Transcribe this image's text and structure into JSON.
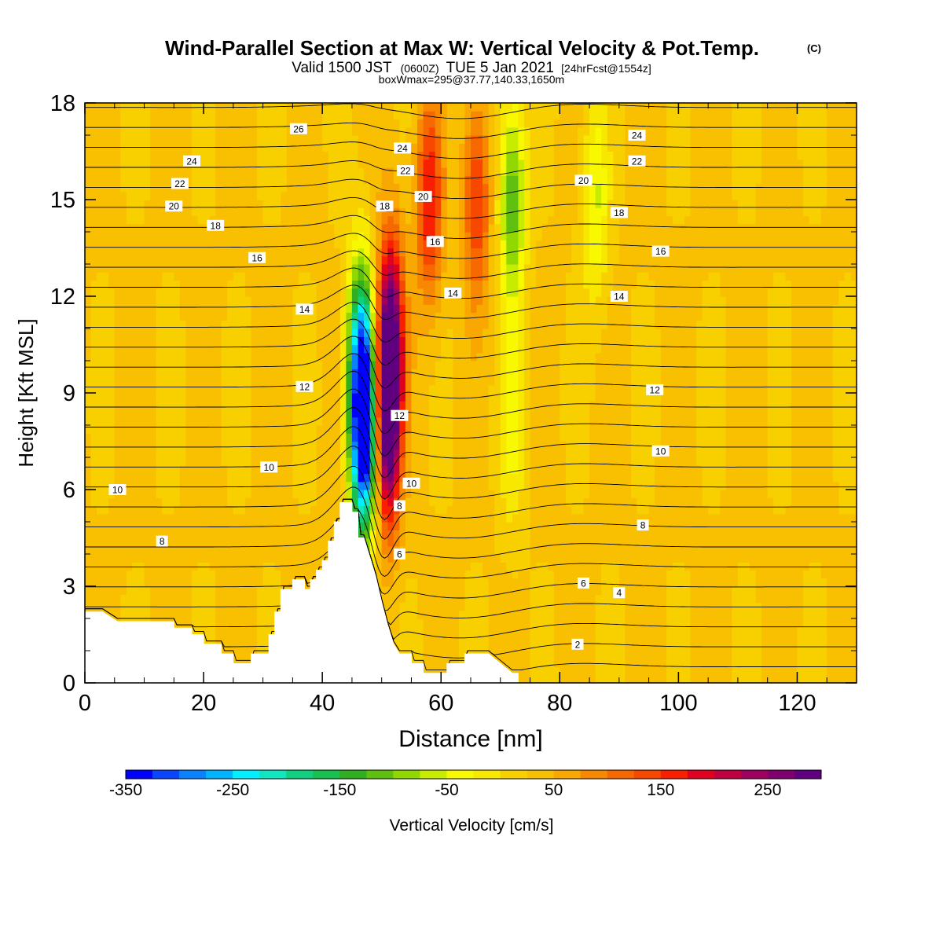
{
  "chart_data": {
    "type": "heatmap",
    "title": "Wind-Parallel Section at Max W: Vertical Velocity & Pot.Temp.",
    "title_mark": "(C)",
    "subtitle": {
      "main": "Valid 1500 JST",
      "utc": "(0600Z)",
      "date": "TUE 5 Jan 2021",
      "fcst": "[24hrFcst@1554z]"
    },
    "subsubtitle": "boxWmax=295@37.77,140.33,1650m",
    "xlabel": "Distance [nm]",
    "ylabel": "Height [Kft MSL]",
    "xlim": [
      0,
      130
    ],
    "ylim": [
      0,
      18
    ],
    "xticks": [
      0,
      20,
      40,
      60,
      80,
      100,
      120
    ],
    "yticks": [
      0,
      3,
      6,
      9,
      12,
      15,
      18
    ],
    "colorbar": {
      "label": "Vertical Velocity [cm/s]",
      "tick_labels": [
        -350,
        -250,
        -150,
        -50,
        50,
        150,
        250
      ],
      "levels": [
        -350,
        -325,
        -300,
        -275,
        -250,
        -225,
        -200,
        -175,
        -150,
        -125,
        -100,
        -75,
        -50,
        -25,
        0,
        25,
        50,
        75,
        100,
        125,
        150,
        175,
        200,
        225,
        250,
        275
      ],
      "colors": [
        "#0000ff",
        "#0a46ff",
        "#0a82ff",
        "#00b4ff",
        "#00f0ff",
        "#10e6c0",
        "#10d080",
        "#18c050",
        "#30b020",
        "#60c010",
        "#90d800",
        "#c8ec00",
        "#f8f800",
        "#f8e800",
        "#f8d000",
        "#f8c000",
        "#f8a800",
        "#f88800",
        "#f86800",
        "#f84800",
        "#f82000",
        "#e00020",
        "#c00040",
        "#a00060",
        "#800070",
        "#600080"
      ]
    },
    "terrain_height_kft": [
      [
        0,
        2.2
      ],
      [
        3,
        2.2
      ],
      [
        5.5,
        1.9
      ],
      [
        15,
        1.9
      ],
      [
        15,
        1.7
      ],
      [
        18,
        1.7
      ],
      [
        18,
        1.5
      ],
      [
        20,
        1.5
      ],
      [
        20,
        1.2
      ],
      [
        23,
        1.2
      ],
      [
        23,
        0.9
      ],
      [
        25,
        0.9
      ],
      [
        25,
        0.6
      ],
      [
        28,
        0.6
      ],
      [
        28,
        0.9
      ],
      [
        31,
        0.9
      ],
      [
        31,
        1.5
      ],
      [
        32,
        1.5
      ],
      [
        32,
        2.2
      ],
      [
        33,
        2.2
      ],
      [
        33,
        2.9
      ],
      [
        35,
        2.9
      ],
      [
        35,
        3.2
      ],
      [
        37,
        3.2
      ],
      [
        37,
        2.9
      ],
      [
        38,
        2.9
      ],
      [
        38,
        3.2
      ],
      [
        39,
        3.2
      ],
      [
        39,
        3.5
      ],
      [
        40,
        3.5
      ],
      [
        40,
        3.8
      ],
      [
        41,
        3.8
      ],
      [
        41,
        4.4
      ],
      [
        42,
        4.4
      ],
      [
        42,
        5.0
      ],
      [
        43,
        5.0
      ],
      [
        43,
        5.6
      ],
      [
        45,
        5.6
      ],
      [
        45,
        5.3
      ],
      [
        46,
        5.3
      ],
      [
        46,
        4.5
      ],
      [
        47,
        4.5
      ],
      [
        48,
        3.9
      ],
      [
        49,
        3.3
      ],
      [
        50,
        2.5
      ],
      [
        51,
        1.8
      ],
      [
        52,
        1.2
      ],
      [
        53,
        0.9
      ],
      [
        55,
        0.9
      ],
      [
        55,
        0.6
      ],
      [
        57,
        0.6
      ],
      [
        57,
        0.3
      ],
      [
        61,
        0.3
      ],
      [
        61,
        0.6
      ],
      [
        64,
        0.6
      ],
      [
        64,
        0.9
      ],
      [
        68,
        0.9
      ],
      [
        70,
        0.6
      ],
      [
        72,
        0.3
      ],
      [
        73,
        0.3
      ],
      [
        73,
        0.0
      ],
      [
        130,
        0.0
      ]
    ],
    "w_field_peaks_cm_s": [
      {
        "x": 47,
        "y": 7.5,
        "w": -340
      },
      {
        "x": 51,
        "y": 8.0,
        "w": 280
      },
      {
        "x": 46.5,
        "y": 10.0,
        "w": -250
      },
      {
        "x": 51.5,
        "y": 11.0,
        "w": 230
      },
      {
        "x": 58,
        "y": 15.0,
        "w": 150
      },
      {
        "x": 66,
        "y": 15.0,
        "w": 130
      },
      {
        "x": 72,
        "y": 15.0,
        "w": -150
      },
      {
        "x": 72,
        "y": 8.0,
        "w": -60
      },
      {
        "x": 86,
        "y": 15.0,
        "w": -80
      }
    ],
    "isentrope_labels": [
      {
        "x": 5.5,
        "y": 6.0,
        "text": "10"
      },
      {
        "x": 13,
        "y": 4.4,
        "text": "8"
      },
      {
        "x": 15,
        "y": 14.8,
        "text": "20"
      },
      {
        "x": 16,
        "y": 15.5,
        "text": "22"
      },
      {
        "x": 18,
        "y": 16.2,
        "text": "24"
      },
      {
        "x": 22,
        "y": 14.2,
        "text": "18"
      },
      {
        "x": 29,
        "y": 13.2,
        "text": "16"
      },
      {
        "x": 31,
        "y": 6.7,
        "text": "10"
      },
      {
        "x": 36,
        "y": 17.2,
        "text": "26"
      },
      {
        "x": 37,
        "y": 11.6,
        "text": "14"
      },
      {
        "x": 37,
        "y": 9.2,
        "text": "12"
      },
      {
        "x": 50.5,
        "y": 14.8,
        "text": "18"
      },
      {
        "x": 53.5,
        "y": 16.6,
        "text": "24"
      },
      {
        "x": 54,
        "y": 15.9,
        "text": "22"
      },
      {
        "x": 57,
        "y": 15.1,
        "text": "20"
      },
      {
        "x": 53,
        "y": 8.3,
        "text": "12"
      },
      {
        "x": 55,
        "y": 6.2,
        "text": "10"
      },
      {
        "x": 53,
        "y": 5.5,
        "text": "8"
      },
      {
        "x": 53,
        "y": 4.0,
        "text": "6"
      },
      {
        "x": 59,
        "y": 13.7,
        "text": "16"
      },
      {
        "x": 62,
        "y": 12.1,
        "text": "14"
      },
      {
        "x": 84,
        "y": 15.6,
        "text": "20"
      },
      {
        "x": 84,
        "y": 3.1,
        "text": "6"
      },
      {
        "x": 83,
        "y": 1.2,
        "text": "2"
      },
      {
        "x": 90,
        "y": 2.8,
        "text": "4"
      },
      {
        "x": 90,
        "y": 14.6,
        "text": "18"
      },
      {
        "x": 90,
        "y": 12.0,
        "text": "14"
      },
      {
        "x": 94,
        "y": 4.9,
        "text": "8"
      },
      {
        "x": 93,
        "y": 17.0,
        "text": "24"
      },
      {
        "x": 93,
        "y": 16.2,
        "text": "22"
      },
      {
        "x": 97,
        "y": 13.4,
        "text": "16"
      },
      {
        "x": 97,
        "y": 7.2,
        "text": "10"
      },
      {
        "x": 96,
        "y": 9.1,
        "text": "12"
      }
    ],
    "grid": false
  }
}
